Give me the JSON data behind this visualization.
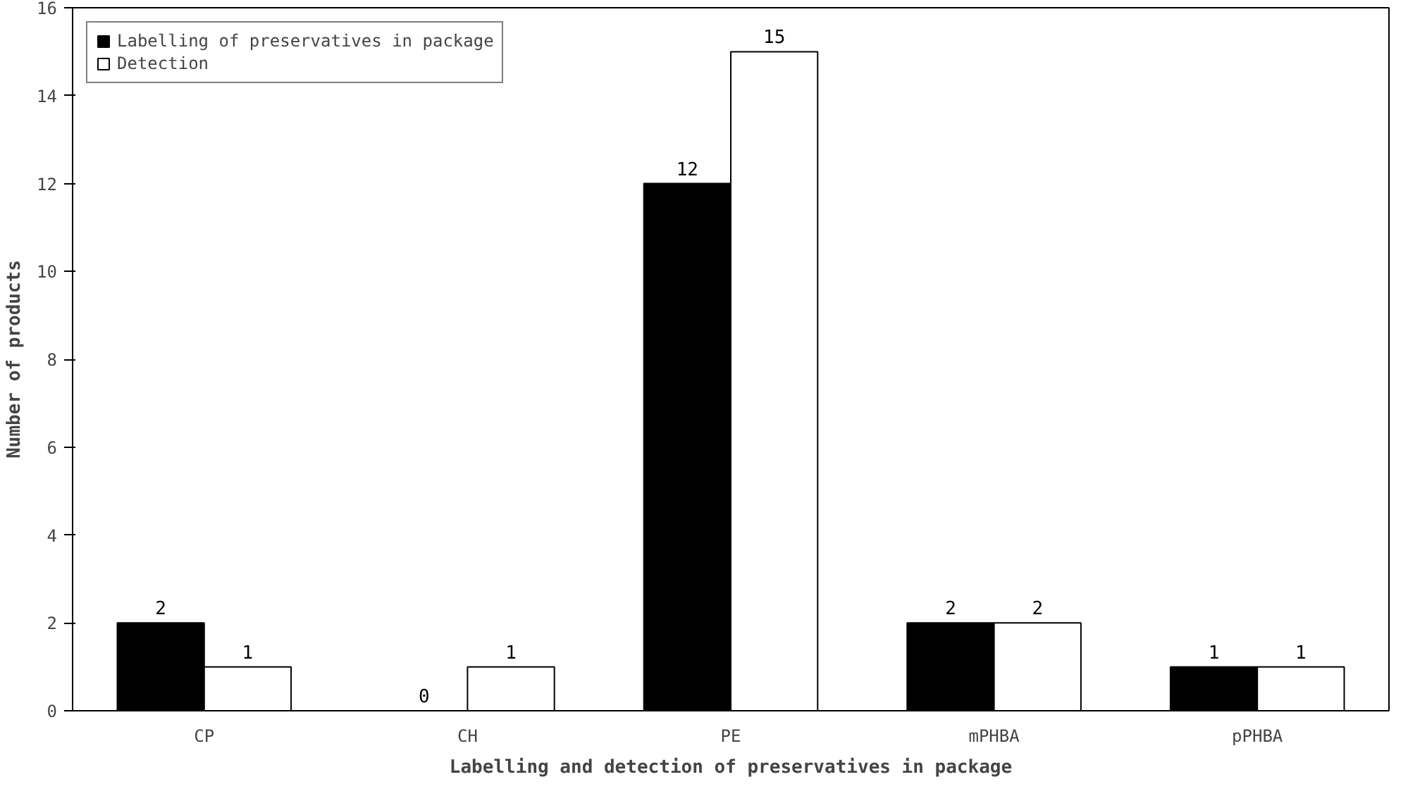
{
  "chart_data": {
    "type": "bar",
    "categories": [
      "CP",
      "CH",
      "PE",
      "mPHBA",
      "pPHBA"
    ],
    "series": [
      {
        "name": "Labelling of preservatives in package",
        "color": "#000000",
        "values": [
          2,
          0,
          12,
          2,
          1
        ]
      },
      {
        "name": "Detection",
        "color": "#ffffff",
        "values": [
          1,
          1,
          15,
          2,
          1
        ]
      }
    ],
    "xlabel": "Labelling and detection of preservatives in package",
    "ylabel": "Number of products",
    "ylim": [
      0,
      16
    ],
    "yticks": [
      0,
      2,
      4,
      6,
      8,
      10,
      12,
      14,
      16
    ],
    "data_labels": true,
    "legend": "top left",
    "grid": false
  }
}
